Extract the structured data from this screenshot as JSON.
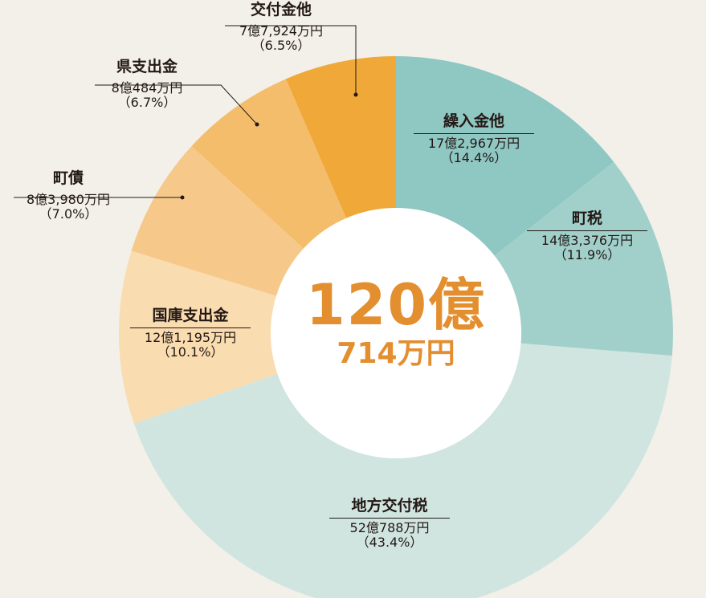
{
  "chart_data": {
    "type": "pie",
    "donut": true,
    "start": "top",
    "direction": "clockwise",
    "center_total": {
      "main": "120億",
      "sub": "714万円"
    },
    "slices": [
      {
        "name": "繰入金他",
        "amount": "17億2,967万円",
        "percent_label": "（14.4%）",
        "value": 14.4,
        "color": "#8fc7c2"
      },
      {
        "name": "町税",
        "amount": "14億3,376万円",
        "percent_label": "（11.9%）",
        "value": 11.9,
        "color": "#a1d0cb"
      },
      {
        "name": "地方交付税",
        "amount": "52億788万円",
        "percent_label": "（43.4%）",
        "value": 43.4,
        "color": "#d0e5e0"
      },
      {
        "name": "国庫支出金",
        "amount": "12億1,195万円",
        "percent_label": "（10.1%）",
        "value": 10.1,
        "color": "#f9dcb0"
      },
      {
        "name": "町債",
        "amount": "8億3,980万円",
        "percent_label": "（7.0%）",
        "value": 7.0,
        "color": "#f6c98a"
      },
      {
        "name": "県支出金",
        "amount": "8億484万円",
        "percent_label": "（6.7%）",
        "value": 6.7,
        "color": "#f4bd6c"
      },
      {
        "name": "交付金他",
        "amount": "7億7,924万円",
        "percent_label": "（6.5%）",
        "value": 6.5,
        "color": "#f0a838"
      }
    ]
  }
}
